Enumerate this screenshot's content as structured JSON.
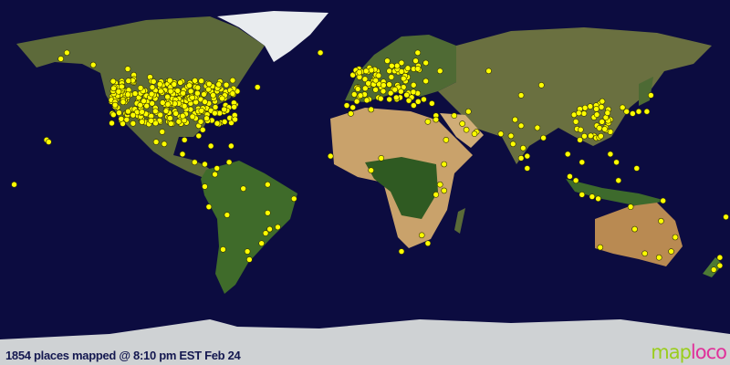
{
  "caption": "1854 places mapped @ 8:10 pm EST Feb 24",
  "logo": {
    "part1": "map",
    "part2": "loco"
  },
  "colors": {
    "ocean": "#0c0c40",
    "marker": "#ffff00",
    "marker_stroke": "#333300",
    "logo_green": "#9acd1e",
    "logo_pink": "#e0309a",
    "caption": "#141850"
  },
  "projection": "equirectangular",
  "places": [
    [
      61,
      -150
    ],
    [
      64,
      -147
    ],
    [
      58,
      -134
    ],
    [
      53,
      -114
    ],
    [
      51,
      -114
    ],
    [
      49,
      -123
    ],
    [
      47,
      -122
    ],
    [
      45,
      -123
    ],
    [
      37,
      -122
    ],
    [
      34,
      -118
    ],
    [
      33,
      -117
    ],
    [
      32,
      -111
    ],
    [
      33,
      -112
    ],
    [
      39,
      -105
    ],
    [
      40,
      -112
    ],
    [
      36,
      -115
    ],
    [
      30,
      -97
    ],
    [
      29,
      -95
    ],
    [
      33,
      -97
    ],
    [
      30,
      -90
    ],
    [
      26,
      -80
    ],
    [
      28,
      -82
    ],
    [
      30,
      -81
    ],
    [
      34,
      -84
    ],
    [
      35,
      -80
    ],
    [
      39,
      -77
    ],
    [
      40,
      -74
    ],
    [
      42,
      -71
    ],
    [
      44,
      -79
    ],
    [
      45,
      -73
    ],
    [
      46,
      -71
    ],
    [
      47,
      -53
    ],
    [
      45,
      -63
    ],
    [
      44,
      -66
    ],
    [
      42,
      -83
    ],
    [
      42,
      -88
    ],
    [
      44,
      -93
    ],
    [
      39,
      -94
    ],
    [
      39,
      -86
    ],
    [
      41,
      -81
    ],
    [
      38,
      -90
    ],
    [
      36,
      -86
    ],
    [
      41,
      -96
    ],
    [
      47,
      -101
    ],
    [
      52,
      -106
    ],
    [
      50,
      -97
    ],
    [
      56,
      -117
    ],
    [
      21,
      -157
    ],
    [
      20,
      -156
    ],
    [
      19,
      -99
    ],
    [
      20,
      -103
    ],
    [
      25,
      -100
    ],
    [
      21,
      -89
    ],
    [
      23,
      -82
    ],
    [
      18,
      -66
    ],
    [
      18,
      -76
    ],
    [
      14,
      -90
    ],
    [
      10,
      -84
    ],
    [
      9,
      -79
    ],
    [
      4,
      -74
    ],
    [
      10,
      -67
    ],
    [
      7,
      -73
    ],
    [
      -2,
      -79
    ],
    [
      -12,
      -77
    ],
    [
      -16,
      -68
    ],
    [
      -23,
      -47
    ],
    [
      -22,
      -43
    ],
    [
      -25,
      -49
    ],
    [
      -30,
      -51
    ],
    [
      -34,
      -58
    ],
    [
      -33,
      -70
    ],
    [
      -15,
      -48
    ],
    [
      -8,
      -35
    ],
    [
      -3,
      -60
    ],
    [
      -1,
      -48
    ],
    [
      -38,
      -57
    ],
    [
      -1,
      -173
    ],
    [
      64,
      -22
    ],
    [
      60,
      11
    ],
    [
      59,
      18
    ],
    [
      60,
      25
    ],
    [
      55,
      12
    ],
    [
      56,
      -3
    ],
    [
      53,
      -6
    ],
    [
      51,
      0
    ],
    [
      48,
      2
    ],
    [
      52,
      5
    ],
    [
      50,
      4
    ],
    [
      52,
      13
    ],
    [
      48,
      16
    ],
    [
      47,
      8
    ],
    [
      45,
      9
    ],
    [
      41,
      12
    ],
    [
      40,
      -4
    ],
    [
      38,
      -9
    ],
    [
      41,
      2
    ],
    [
      37,
      -6
    ],
    [
      46,
      14
    ],
    [
      50,
      20
    ],
    [
      52,
      21
    ],
    [
      47,
      19
    ],
    [
      44,
      26
    ],
    [
      42,
      23
    ],
    [
      38,
      24
    ],
    [
      41,
      29
    ],
    [
      39,
      33
    ],
    [
      50,
      30
    ],
    [
      55,
      37
    ],
    [
      59,
      30
    ],
    [
      56,
      24
    ],
    [
      64,
      26
    ],
    [
      55,
      61
    ],
    [
      43,
      77
    ],
    [
      35,
      51
    ],
    [
      33,
      35
    ],
    [
      31,
      35
    ],
    [
      30,
      31
    ],
    [
      25,
      55
    ],
    [
      24,
      54
    ],
    [
      21,
      40
    ],
    [
      26,
      50
    ],
    [
      29,
      48
    ],
    [
      33,
      44
    ],
    [
      36,
      3
    ],
    [
      34,
      -7
    ],
    [
      12,
      8
    ],
    [
      9,
      39
    ],
    [
      -1,
      37
    ],
    [
      -4,
      39
    ],
    [
      -6,
      35
    ],
    [
      -26,
      28
    ],
    [
      -34,
      18
    ],
    [
      -30,
      31
    ],
    [
      6,
      3
    ],
    [
      13,
      -17
    ],
    [
      28,
      77
    ],
    [
      19,
      73
    ],
    [
      13,
      80
    ],
    [
      12,
      77
    ],
    [
      17,
      78
    ],
    [
      22,
      88
    ],
    [
      23,
      72
    ],
    [
      27,
      85
    ],
    [
      31,
      74
    ],
    [
      24,
      67
    ],
    [
      7,
      80
    ],
    [
      14,
      100
    ],
    [
      21,
      106
    ],
    [
      10,
      107
    ],
    [
      3,
      101
    ],
    [
      1,
      104
    ],
    [
      -6,
      107
    ],
    [
      -7,
      112
    ],
    [
      -8,
      115
    ],
    [
      14,
      121
    ],
    [
      10,
      124
    ],
    [
      23,
      113
    ],
    [
      22,
      114
    ],
    [
      25,
      121
    ],
    [
      31,
      121
    ],
    [
      32,
      119
    ],
    [
      30,
      120
    ],
    [
      39,
      116
    ],
    [
      40,
      117
    ],
    [
      36,
      120
    ],
    [
      38,
      114
    ],
    [
      34,
      108
    ],
    [
      30,
      104
    ],
    [
      37,
      127
    ],
    [
      35,
      129
    ],
    [
      35,
      139
    ],
    [
      35,
      135
    ],
    [
      43,
      141
    ],
    [
      34,
      132
    ],
    [
      48,
      87
    ],
    [
      7,
      134
    ],
    [
      1,
      125
    ],
    [
      -9,
      147
    ],
    [
      -34,
      151
    ],
    [
      -37,
      145
    ],
    [
      -35,
      138
    ],
    [
      -32,
      116
    ],
    [
      -27,
      153
    ],
    [
      -19,
      146
    ],
    [
      -12,
      131
    ],
    [
      -23,
      133
    ],
    [
      -37,
      175
    ],
    [
      -41,
      175
    ],
    [
      -43,
      172
    ],
    [
      -17,
      178
    ]
  ]
}
